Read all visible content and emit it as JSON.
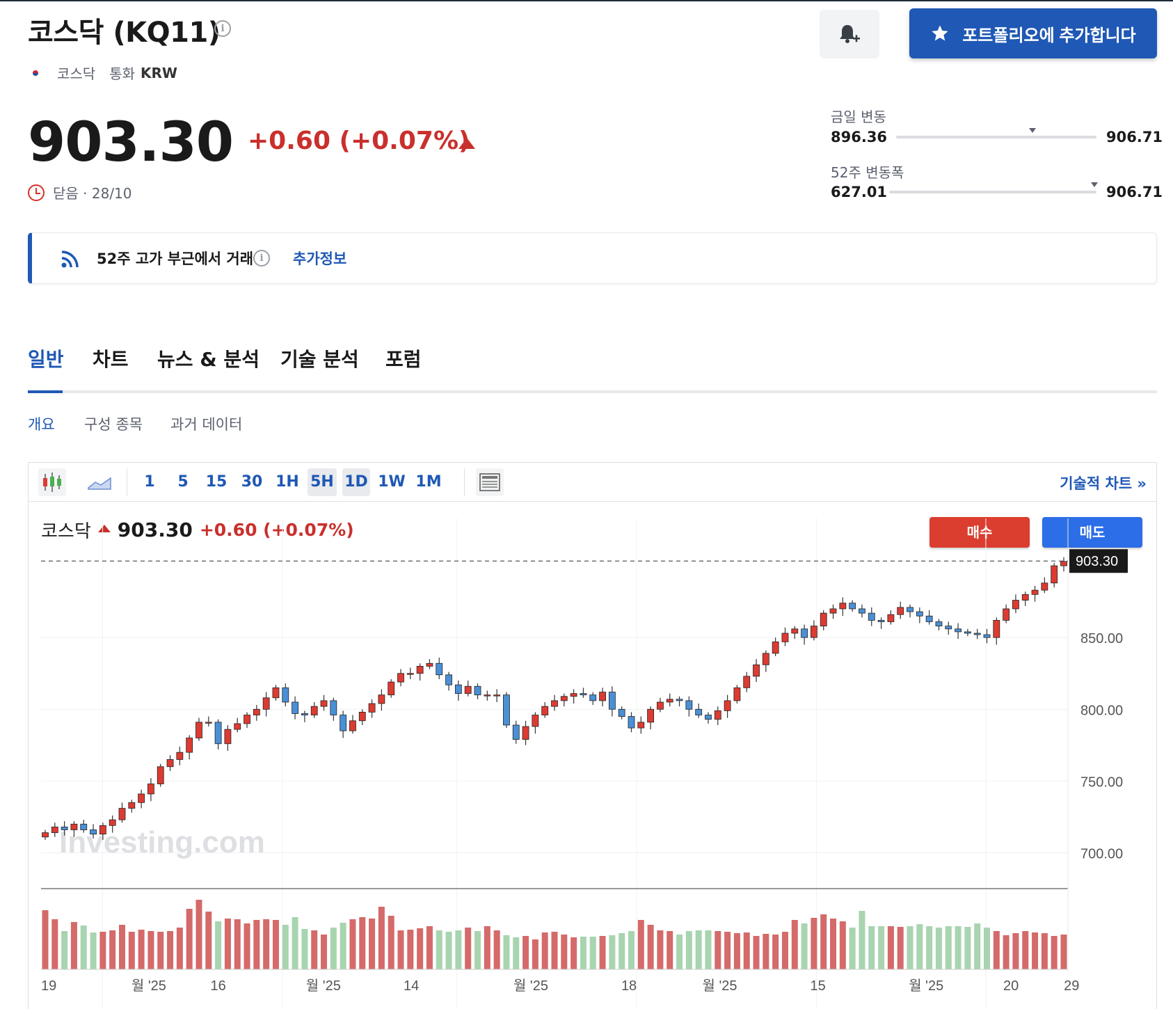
{
  "header": {
    "title": "코스닥 (KQ11)",
    "exchange": "코스닥",
    "currency_label": "통화",
    "currency": "KRW",
    "portfolio_button": "포트폴리오에 추가합니다"
  },
  "quote": {
    "price": "903.30",
    "change": "+0.60 (+0.07%)",
    "status": "닫음 · 28/10"
  },
  "ranges": {
    "day_label": "금일 변동",
    "day_low": "896.36",
    "day_high": "906.71",
    "day_position": 0.68,
    "week52_label": "52주 변동폭",
    "week52_low": "627.01",
    "week52_high": "906.71",
    "week52_position": 0.99
  },
  "alert": {
    "text": "52주 고가 부근에서 거래",
    "link": "추가정보"
  },
  "tabs": [
    "일반",
    "차트",
    "뉴스 & 분석",
    "기술 분석",
    "포럼"
  ],
  "subtabs": [
    "개요",
    "구성 종목",
    "과거 데이터"
  ],
  "toolbar": {
    "intervals": [
      "1",
      "5",
      "15",
      "30",
      "1H",
      "5H",
      "1D",
      "1W",
      "1M"
    ],
    "tech_chart_link": "기술적 차트 »"
  },
  "chart_header": {
    "name": "코스닥",
    "price": "903.30",
    "change": "+0.60 (+0.07%)",
    "buy": "매수",
    "sell": "매도",
    "watermark": "Investing.com"
  },
  "colors": {
    "up": "#dd3b32",
    "down": "#4a90d6",
    "accent": "#1f58b5",
    "vol_up": "#d46a6a",
    "vol_down": "#a8d4b0"
  },
  "chart_data": {
    "type": "candlestick",
    "last_price_label": "903.30",
    "y_ticks": [
      "850.00",
      "800.00",
      "750.00",
      "700.00"
    ],
    "x_ticks": [
      "19",
      "월 '25",
      "16",
      "월 '25",
      "14",
      "월 '25",
      "18",
      "월 '25",
      "15",
      "월 '25",
      "20",
      "29"
    ],
    "ylim": [
      676,
      933
    ],
    "closes": [
      714,
      718,
      716,
      720,
      716,
      713,
      719,
      723,
      731,
      735,
      741,
      748,
      760,
      765,
      770,
      780,
      791,
      791,
      776,
      786,
      790,
      796,
      800,
      808,
      815,
      805,
      797,
      796,
      802,
      806,
      796,
      785,
      792,
      798,
      804,
      810,
      819,
      825,
      825,
      830,
      832,
      824,
      817,
      811,
      816,
      810,
      810,
      810,
      789,
      779,
      788,
      796,
      802,
      806,
      809,
      811,
      810,
      806,
      812,
      800,
      795,
      787,
      791,
      800,
      805,
      807,
      806,
      800,
      796,
      793,
      799,
      806,
      815,
      823,
      831,
      839,
      847,
      853,
      856,
      850,
      858,
      867,
      870,
      874,
      870,
      867,
      862,
      861,
      866,
      871,
      868,
      865,
      861,
      858,
      856,
      854,
      853,
      852,
      850,
      862,
      870,
      876,
      880,
      883,
      888,
      900,
      903
    ],
    "volumes": [
      0.85,
      0.72,
      0.55,
      0.68,
      0.63,
      0.53,
      0.54,
      0.56,
      0.64,
      0.54,
      0.57,
      0.55,
      0.54,
      0.55,
      0.6,
      0.87,
      1.0,
      0.83,
      0.69,
      0.73,
      0.72,
      0.66,
      0.71,
      0.72,
      0.71,
      0.64,
      0.75,
      0.58,
      0.56,
      0.5,
      0.6,
      0.67,
      0.72,
      0.75,
      0.73,
      0.9,
      0.77,
      0.56,
      0.57,
      0.59,
      0.62,
      0.56,
      0.54,
      0.56,
      0.6,
      0.55,
      0.62,
      0.56,
      0.49,
      0.46,
      0.48,
      0.43,
      0.53,
      0.54,
      0.5,
      0.46,
      0.47,
      0.47,
      0.48,
      0.49,
      0.52,
      0.55,
      0.71,
      0.64,
      0.56,
      0.55,
      0.5,
      0.55,
      0.56,
      0.56,
      0.55,
      0.54,
      0.52,
      0.53,
      0.48,
      0.51,
      0.5,
      0.54,
      0.71,
      0.66,
      0.74,
      0.79,
      0.73,
      0.69,
      0.6,
      0.84,
      0.62,
      0.62,
      0.62,
      0.61,
      0.62,
      0.65,
      0.62,
      0.6,
      0.62,
      0.62,
      0.61,
      0.66,
      0.6,
      0.55,
      0.49,
      0.52,
      0.55,
      0.53,
      0.52,
      0.48,
      0.5
    ]
  }
}
